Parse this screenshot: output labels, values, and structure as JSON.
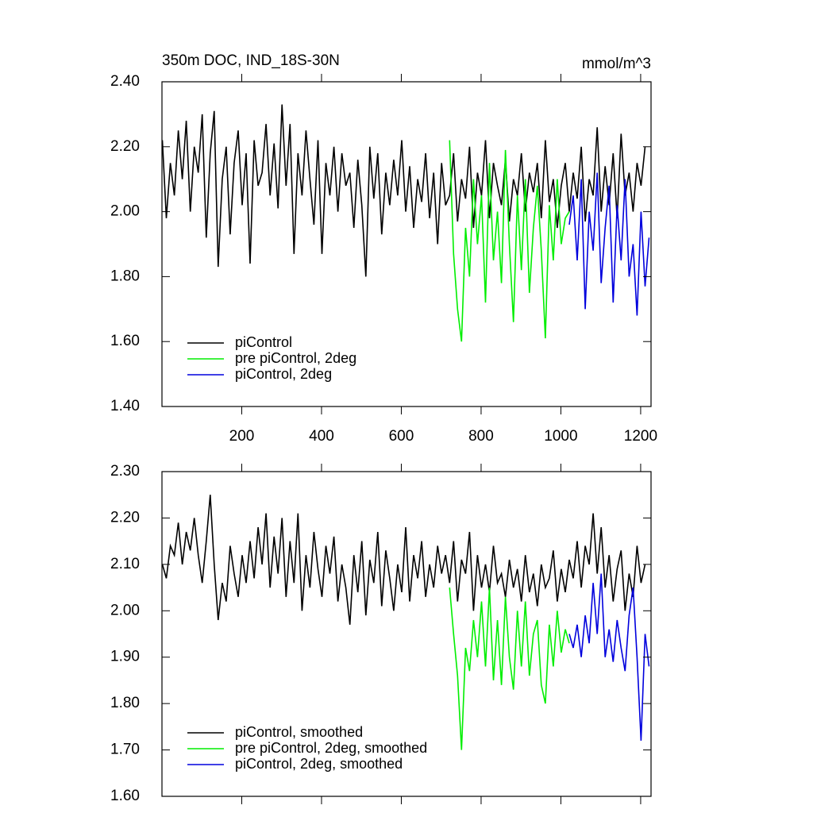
{
  "chart_data": [
    {
      "type": "line",
      "title": "350m DOC, IND_18S-30N",
      "units": "mmol/m^3",
      "xlim": [
        0,
        1226
      ],
      "ylim": [
        1.4,
        2.4
      ],
      "xticks": [
        200,
        400,
        600,
        800,
        1000,
        1200
      ],
      "yticks": [
        {
          "value": 1.4,
          "label": "1.40"
        },
        {
          "value": 1.6,
          "label": "1.60"
        },
        {
          "value": 1.8,
          "label": "1.80"
        },
        {
          "value": 2.0,
          "label": "2.00"
        },
        {
          "value": 2.2,
          "label": "2.20"
        },
        {
          "value": 2.4,
          "label": "2.40"
        }
      ],
      "legend": "lower left",
      "series": [
        {
          "name": "piControl",
          "color": "#000000",
          "x": [
            1,
            11,
            21,
            31,
            41,
            51,
            61,
            71,
            81,
            91,
            101,
            111,
            121,
            131,
            141,
            151,
            161,
            171,
            181,
            191,
            201,
            211,
            221,
            231,
            241,
            251,
            261,
            271,
            281,
            291,
            301,
            311,
            321,
            331,
            341,
            351,
            361,
            371,
            381,
            391,
            401,
            411,
            421,
            431,
            441,
            451,
            461,
            471,
            481,
            491,
            501,
            511,
            521,
            531,
            541,
            551,
            561,
            571,
            581,
            591,
            601,
            611,
            621,
            631,
            641,
            651,
            661,
            671,
            681,
            691,
            701,
            711,
            721,
            731,
            741,
            751,
            761,
            771,
            781,
            791,
            801,
            811,
            821,
            831,
            841,
            851,
            861,
            871,
            881,
            891,
            901,
            911,
            921,
            931,
            941,
            951,
            961,
            971,
            981,
            991,
            1001,
            1011,
            1021,
            1031,
            1041,
            1051,
            1061,
            1071,
            1081,
            1091,
            1101,
            1111,
            1121,
            1131,
            1141,
            1151,
            1161,
            1171,
            1181,
            1191,
            1201,
            1211
          ],
          "values": [
            2.22,
            1.98,
            2.15,
            2.05,
            2.25,
            2.1,
            2.28,
            2.0,
            2.2,
            2.12,
            2.3,
            1.92,
            2.18,
            2.31,
            1.83,
            2.1,
            2.2,
            1.93,
            2.15,
            2.25,
            2.02,
            2.18,
            1.84,
            2.22,
            2.08,
            2.12,
            2.27,
            2.05,
            2.21,
            2.01,
            2.33,
            2.08,
            2.27,
            1.87,
            2.18,
            2.05,
            2.25,
            2.1,
            1.96,
            2.22,
            1.87,
            2.15,
            2.05,
            2.2,
            2.0,
            2.18,
            2.08,
            2.12,
            1.95,
            2.16,
            2.02,
            1.8,
            2.2,
            2.04,
            2.18,
            1.93,
            2.12,
            2.02,
            2.16,
            2.05,
            2.22,
            2.0,
            2.14,
            1.95,
            2.1,
            2.03,
            2.18,
            1.98,
            2.12,
            1.9,
            2.15,
            2.02,
            2.05,
            2.18,
            1.97,
            2.1,
            2.04,
            2.2,
            1.95,
            2.12,
            2.05,
            2.22,
            1.98,
            2.15,
            2.08,
            2.02,
            2.16,
            1.97,
            2.1,
            2.05,
            2.18,
            2.0,
            2.12,
            2.06,
            2.15,
            1.98,
            2.22,
            2.03,
            2.1,
            1.95,
            2.08,
            2.15,
            2.0,
            2.12,
            2.04,
            2.2,
            1.97,
            2.1,
            2.05,
            2.26,
            2.0,
            2.14,
            2.02,
            2.18,
            1.98,
            2.24,
            2.05,
            2.12,
            2.0,
            2.15,
            2.08,
            2.2
          ]
        },
        {
          "name": "pre piControl, 2deg",
          "color": "#00ee00",
          "x": [
            721,
            731,
            741,
            751,
            761,
            771,
            781,
            791,
            801,
            811,
            821,
            831,
            841,
            851,
            861,
            871,
            881,
            891,
            901,
            911,
            921,
            931,
            941,
            951,
            961,
            971,
            981,
            991,
            1001,
            1011,
            1021
          ],
          "values": [
            2.22,
            1.87,
            1.7,
            1.6,
            1.95,
            1.8,
            2.1,
            1.9,
            2.05,
            1.72,
            2.15,
            1.85,
            2.0,
            1.78,
            2.19,
            1.9,
            1.66,
            2.05,
            1.82,
            2.1,
            1.75,
            1.95,
            2.08,
            1.88,
            1.61,
            2.02,
            1.85,
            2.1,
            1.9,
            1.98,
            2.0
          ]
        },
        {
          "name": "piControl, 2deg",
          "color": "#0000dd",
          "x": [
            1021,
            1031,
            1041,
            1051,
            1061,
            1071,
            1081,
            1091,
            1101,
            1111,
            1121,
            1131,
            1141,
            1151,
            1161,
            1171,
            1181,
            1191,
            1201,
            1211,
            1221
          ],
          "values": [
            1.96,
            2.05,
            1.85,
            2.1,
            1.7,
            2.0,
            1.88,
            2.12,
            1.78,
            1.95,
            2.08,
            1.72,
            2.02,
            1.85,
            2.1,
            1.8,
            1.9,
            1.68,
            2.0,
            1.77,
            1.92
          ]
        }
      ]
    },
    {
      "type": "line",
      "xlim": [
        0,
        1226
      ],
      "ylim": [
        1.6,
        2.3
      ],
      "xticks": [
        200,
        400,
        600,
        800,
        1000,
        1200
      ],
      "xticklabels": false,
      "yticks": [
        {
          "value": 1.6,
          "label": "1.60"
        },
        {
          "value": 1.7,
          "label": "1.70"
        },
        {
          "value": 1.8,
          "label": "1.80"
        },
        {
          "value": 1.9,
          "label": "1.90"
        },
        {
          "value": 2.0,
          "label": "2.00"
        },
        {
          "value": 2.1,
          "label": "2.10"
        },
        {
          "value": 2.2,
          "label": "2.20"
        },
        {
          "value": 2.3,
          "label": "2.30"
        }
      ],
      "legend": "lower left",
      "series": [
        {
          "name": "piControl, smoothed",
          "color": "#000000",
          "x": [
            1,
            11,
            21,
            31,
            41,
            51,
            61,
            71,
            81,
            91,
            101,
            111,
            121,
            131,
            141,
            151,
            161,
            171,
            181,
            191,
            201,
            211,
            221,
            231,
            241,
            251,
            261,
            271,
            281,
            291,
            301,
            311,
            321,
            331,
            341,
            351,
            361,
            371,
            381,
            391,
            401,
            411,
            421,
            431,
            441,
            451,
            461,
            471,
            481,
            491,
            501,
            511,
            521,
            531,
            541,
            551,
            561,
            571,
            581,
            591,
            601,
            611,
            621,
            631,
            641,
            651,
            661,
            671,
            681,
            691,
            701,
            711,
            721,
            731,
            741,
            751,
            761,
            771,
            781,
            791,
            801,
            811,
            821,
            831,
            841,
            851,
            861,
            871,
            881,
            891,
            901,
            911,
            921,
            931,
            941,
            951,
            961,
            971,
            981,
            991,
            1001,
            1011,
            1021,
            1031,
            1041,
            1051,
            1061,
            1071,
            1081,
            1091,
            1101,
            1111,
            1121,
            1131,
            1141,
            1151,
            1161,
            1171,
            1181,
            1191,
            1201,
            1211
          ],
          "values": [
            2.1,
            2.07,
            2.14,
            2.12,
            2.19,
            2.1,
            2.17,
            2.13,
            2.2,
            2.12,
            2.06,
            2.15,
            2.25,
            2.1,
            1.98,
            2.06,
            2.02,
            2.14,
            2.08,
            2.03,
            2.12,
            2.06,
            2.15,
            2.07,
            2.18,
            2.1,
            2.21,
            2.05,
            2.16,
            2.08,
            2.2,
            2.03,
            2.15,
            2.06,
            2.21,
            2.0,
            2.12,
            2.05,
            2.17,
            2.09,
            2.03,
            2.14,
            2.08,
            2.16,
            2.02,
            2.1,
            2.05,
            1.97,
            2.12,
            2.04,
            2.15,
            1.99,
            2.11,
            2.06,
            2.17,
            2.01,
            2.13,
            2.07,
            2.0,
            2.1,
            2.04,
            2.18,
            2.02,
            2.12,
            2.07,
            2.15,
            2.03,
            2.1,
            2.05,
            2.14,
            2.08,
            2.12,
            2.06,
            2.15,
            2.02,
            2.11,
            2.08,
            2.17,
            2.0,
            2.12,
            2.05,
            2.1,
            2.04,
            2.14,
            2.06,
            2.08,
            2.03,
            2.11,
            2.05,
            2.09,
            2.02,
            2.12,
            2.04,
            2.08,
            2.01,
            2.1,
            2.05,
            2.07,
            2.13,
            2.02,
            2.09,
            2.04,
            2.11,
            2.07,
            2.15,
            2.05,
            2.14,
            2.1,
            2.21,
            2.08,
            2.18,
            2.05,
            2.12,
            2.02,
            2.09,
            2.13,
            2.0,
            2.08,
            2.03,
            2.14,
            2.06,
            2.1
          ]
        },
        {
          "name": "pre piControl, 2deg, smoothed",
          "color": "#00ee00",
          "x": [
            721,
            731,
            741,
            751,
            761,
            771,
            781,
            791,
            801,
            811,
            821,
            831,
            841,
            851,
            861,
            871,
            881,
            891,
            901,
            911,
            921,
            931,
            941,
            951,
            961,
            971,
            981,
            991,
            1001,
            1011,
            1021
          ],
          "values": [
            2.05,
            1.95,
            1.86,
            1.7,
            1.92,
            1.87,
            1.98,
            1.9,
            2.02,
            1.88,
            2.05,
            1.85,
            1.98,
            1.84,
            2.03,
            1.9,
            1.83,
            2.0,
            1.88,
            2.02,
            1.86,
            1.95,
            1.98,
            1.84,
            1.8,
            1.97,
            1.88,
            2.0,
            1.91,
            1.96,
            1.93
          ]
        },
        {
          "name": "piControl, 2deg, smoothed",
          "color": "#0000dd",
          "x": [
            1021,
            1031,
            1041,
            1051,
            1061,
            1071,
            1081,
            1091,
            1101,
            1111,
            1121,
            1131,
            1141,
            1151,
            1161,
            1171,
            1181,
            1191,
            1201,
            1211,
            1221
          ],
          "values": [
            1.95,
            1.92,
            1.97,
            1.9,
            1.99,
            1.93,
            2.06,
            1.95,
            2.08,
            1.9,
            1.96,
            1.89,
            1.98,
            1.92,
            1.87,
            1.99,
            2.05,
            1.9,
            1.72,
            1.95,
            1.88
          ]
        }
      ]
    }
  ]
}
